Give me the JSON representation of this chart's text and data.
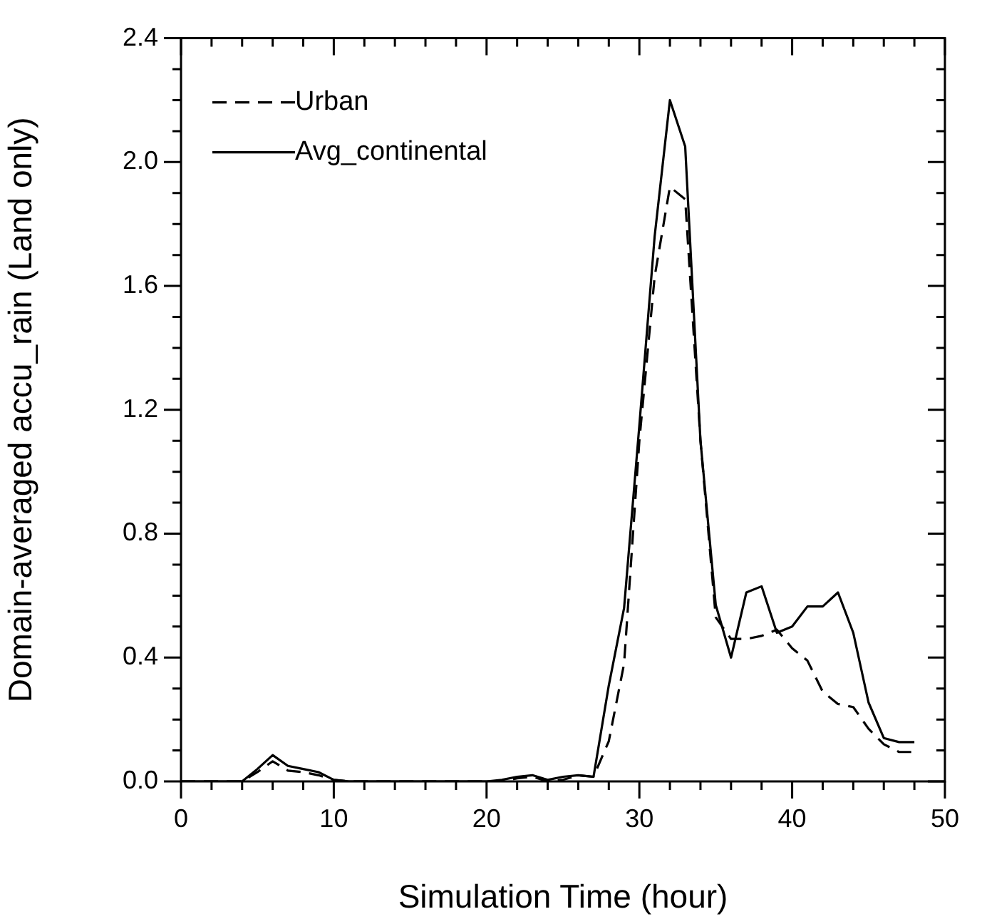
{
  "chart_data": {
    "type": "line",
    "xlabel": "Simulation Time (hour)",
    "ylabel": "Domain-averaged accu_rain (Land only)",
    "x": [
      0,
      1,
      2,
      3,
      4,
      5,
      6,
      7,
      8,
      9,
      10,
      11,
      12,
      13,
      14,
      15,
      16,
      17,
      18,
      19,
      20,
      21,
      22,
      23,
      24,
      25,
      26,
      27,
      28,
      29,
      30,
      31,
      32,
      33,
      34,
      35,
      36,
      37,
      38,
      39,
      40,
      41,
      42,
      43,
      44,
      45,
      46,
      47,
      48
    ],
    "series": [
      {
        "name": "Urban",
        "color": "#000000",
        "line_style": "dashed",
        "values": [
          0,
          0,
          0,
          0,
          0,
          0.03,
          0.065,
          0.035,
          0.03,
          0.02,
          0.005,
          0,
          0,
          0,
          0,
          0,
          0,
          0,
          0,
          0,
          0,
          0,
          0.01,
          0.015,
          0,
          0.005,
          0.02,
          0.015,
          0.13,
          0.38,
          1.1,
          1.63,
          1.92,
          1.88,
          1.1,
          0.53,
          0.46,
          0.46,
          0.47,
          0.49,
          0.43,
          0.39,
          0.29,
          0.25,
          0.24,
          0.17,
          0.12,
          0.095,
          0.095
        ]
      },
      {
        "name": "Avg_continental",
        "color": "#000000",
        "line_style": "solid",
        "values": [
          0,
          0,
          0,
          0,
          0,
          0.04,
          0.085,
          0.05,
          0.04,
          0.03,
          0.005,
          0,
          0,
          0,
          0,
          0,
          0,
          0,
          0,
          0,
          0,
          0.005,
          0.015,
          0.02,
          0.005,
          0.015,
          0.02,
          0.015,
          0.31,
          0.56,
          1.15,
          1.76,
          2.2,
          2.05,
          1.1,
          0.57,
          0.4,
          0.61,
          0.63,
          0.48,
          0.5,
          0.565,
          0.565,
          0.61,
          0.48,
          0.255,
          0.14,
          0.127,
          0.127
        ]
      }
    ],
    "xlim": [
      0,
      50
    ],
    "xticks": [
      0,
      {
        "value": 2,
        "label": null
      },
      {
        "value": 4,
        "label": null
      },
      {
        "value": 6,
        "label": null
      },
      {
        "value": 8,
        "label": null
      },
      10,
      {
        "value": 12,
        "label": null
      },
      {
        "value": 14,
        "label": null
      },
      {
        "value": 16,
        "label": null
      },
      {
        "value": 18,
        "label": null
      },
      20,
      {
        "value": 22,
        "label": null
      },
      {
        "value": 24,
        "label": null
      },
      {
        "value": 26,
        "label": null
      },
      {
        "value": 28,
        "label": null
      },
      30,
      {
        "value": 32,
        "label": null
      },
      {
        "value": 34,
        "label": null
      },
      {
        "value": 36,
        "label": null
      },
      {
        "value": 38,
        "label": null
      },
      40,
      {
        "value": 42,
        "label": null
      },
      {
        "value": 44,
        "label": null
      },
      {
        "value": 46,
        "label": null
      },
      {
        "value": 48,
        "label": null
      },
      50
    ],
    "ylim": [
      0,
      2.4
    ],
    "yticks": [
      {
        "value": 0,
        "label": "0.0"
      },
      {
        "value": 0.1,
        "label": null
      },
      {
        "value": 0.2,
        "label": null
      },
      {
        "value": 0.3,
        "label": null
      },
      {
        "value": 0.4,
        "label": "0.4"
      },
      {
        "value": 0.5,
        "label": null
      },
      {
        "value": 0.6,
        "label": null
      },
      {
        "value": 0.7,
        "label": null
      },
      {
        "value": 0.8,
        "label": "0.8"
      },
      {
        "value": 0.9,
        "label": null
      },
      {
        "value": 1.0,
        "label": null
      },
      {
        "value": 1.1,
        "label": null
      },
      {
        "value": 1.2,
        "label": "1.2"
      },
      {
        "value": 1.3,
        "label": null
      },
      {
        "value": 1.4,
        "label": null
      },
      {
        "value": 1.5,
        "label": null
      },
      {
        "value": 1.6,
        "label": "1.6"
      },
      {
        "value": 1.7,
        "label": null
      },
      {
        "value": 1.8,
        "label": null
      },
      {
        "value": 1.9,
        "label": null
      },
      {
        "value": 2.0,
        "label": "2.0"
      },
      {
        "value": 2.1,
        "label": null
      },
      {
        "value": 2.2,
        "label": null
      },
      {
        "value": 2.3,
        "label": null
      },
      {
        "value": 2.4,
        "label": "2.4"
      }
    ],
    "grid": false,
    "legend": "top left",
    "marker": "none"
  }
}
